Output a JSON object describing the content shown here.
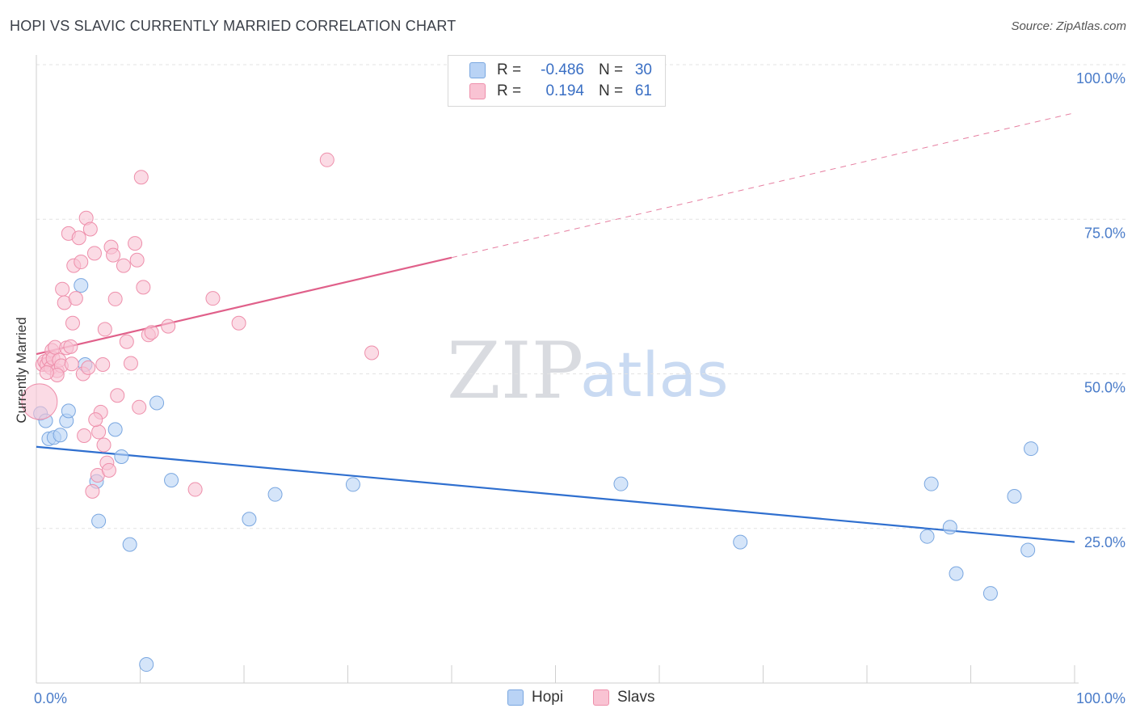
{
  "title": "HOPI VS SLAVIC CURRENTLY MARRIED CORRELATION CHART",
  "source": "Source: ZipAtlas.com",
  "watermark": {
    "zip": "ZIP",
    "atlas": "atlas"
  },
  "colors": {
    "hopi_fill": "#b9d3f5",
    "hopi_stroke": "#7aa7e0",
    "hopi_line": "#2f6fcf",
    "slavs_fill": "#f9c3d3",
    "slavs_stroke": "#ee8fab",
    "slavs_line": "#e0608a",
    "tick": "#4a7cc9"
  },
  "legend": {
    "rows": [
      {
        "r_label": "R =",
        "r_value": "-0.486",
        "n_label": "N =",
        "n_value": "30"
      },
      {
        "r_label": "R =",
        "r_value": "0.194",
        "n_label": "N =",
        "n_value": "61"
      }
    ]
  },
  "chart_data": {
    "type": "scatter",
    "title": "HOPI VS SLAVIC CURRENTLY MARRIED CORRELATION CHART",
    "xlabel": "",
    "ylabel": "Currently Married",
    "xlim": [
      0,
      100
    ],
    "ylim": [
      0,
      100
    ],
    "x_tick_labels": {
      "left": "0.0%",
      "right": "100.0%"
    },
    "y_ticks": [
      {
        "value": 100,
        "label": "100.0%"
      },
      {
        "value": 75,
        "label": "75.0%"
      },
      {
        "value": 50,
        "label": "50.0%"
      },
      {
        "value": 25,
        "label": "25.0%"
      }
    ],
    "legend_entries": [
      "Hopi",
      "Slavs"
    ],
    "series": [
      {
        "name": "Hopi",
        "r": -0.486,
        "n": 30,
        "trend": {
          "x0": 0,
          "y0": 38.2,
          "x1": 100,
          "y1": 22.8,
          "dashed_from": null
        },
        "points": [
          [
            0.4,
            43.6
          ],
          [
            0.9,
            42.4
          ],
          [
            1.2,
            39.5
          ],
          [
            1.7,
            39.7
          ],
          [
            2.3,
            40.1
          ],
          [
            2.9,
            42.4
          ],
          [
            3.1,
            44.0
          ],
          [
            4.3,
            64.3
          ],
          [
            4.7,
            51.5
          ],
          [
            5.8,
            32.6
          ],
          [
            6.0,
            26.2
          ],
          [
            7.6,
            41.0
          ],
          [
            8.2,
            36.6
          ],
          [
            9.0,
            22.4
          ],
          [
            10.6,
            3.0
          ],
          [
            11.6,
            45.3
          ],
          [
            13.0,
            32.8
          ],
          [
            20.5,
            26.5
          ],
          [
            23.0,
            30.5
          ],
          [
            30.5,
            32.1
          ],
          [
            56.3,
            32.2
          ],
          [
            67.8,
            22.8
          ],
          [
            85.8,
            23.7
          ],
          [
            86.2,
            32.2
          ],
          [
            88.0,
            25.2
          ],
          [
            88.6,
            17.7
          ],
          [
            91.9,
            14.5
          ],
          [
            94.2,
            30.2
          ],
          [
            95.5,
            21.5
          ],
          [
            95.8,
            37.9
          ]
        ]
      },
      {
        "name": "Slavs",
        "r": 0.194,
        "n": 61,
        "trend": {
          "x0": 0,
          "y0": 53.2,
          "x1": 100,
          "y1": 92.2,
          "dashed_from": 40
        },
        "points": [
          [
            0.3,
            45.5
          ],
          [
            0.6,
            51.5
          ],
          [
            0.8,
            52.0
          ],
          [
            1.0,
            51.5
          ],
          [
            1.2,
            52.3
          ],
          [
            1.4,
            51.0
          ],
          [
            1.5,
            53.8
          ],
          [
            1.6,
            52.5
          ],
          [
            1.8,
            54.3
          ],
          [
            2.0,
            50.5
          ],
          [
            2.2,
            52.2
          ],
          [
            2.4,
            51.3
          ],
          [
            2.5,
            63.7
          ],
          [
            2.7,
            61.5
          ],
          [
            2.9,
            54.2
          ],
          [
            3.1,
            72.7
          ],
          [
            3.3,
            54.4
          ],
          [
            3.5,
            58.2
          ],
          [
            3.6,
            67.5
          ],
          [
            3.8,
            62.2
          ],
          [
            4.1,
            72.0
          ],
          [
            4.3,
            68.1
          ],
          [
            4.5,
            50.0
          ],
          [
            4.8,
            75.2
          ],
          [
            5.0,
            51.0
          ],
          [
            5.2,
            73.4
          ],
          [
            5.4,
            31.0
          ],
          [
            5.6,
            69.5
          ],
          [
            5.9,
            33.6
          ],
          [
            6.0,
            40.6
          ],
          [
            6.2,
            43.8
          ],
          [
            6.4,
            51.5
          ],
          [
            6.6,
            57.2
          ],
          [
            6.8,
            35.6
          ],
          [
            7.0,
            34.4
          ],
          [
            7.2,
            70.5
          ],
          [
            7.4,
            69.2
          ],
          [
            7.6,
            62.1
          ],
          [
            7.8,
            46.5
          ],
          [
            8.4,
            67.5
          ],
          [
            8.7,
            55.2
          ],
          [
            9.1,
            51.7
          ],
          [
            9.5,
            71.1
          ],
          [
            9.7,
            68.4
          ],
          [
            9.9,
            44.6
          ],
          [
            10.1,
            81.8
          ],
          [
            10.3,
            64.0
          ],
          [
            10.8,
            56.3
          ],
          [
            11.1,
            56.7
          ],
          [
            12.7,
            57.7
          ],
          [
            15.3,
            31.3
          ],
          [
            17.0,
            62.2
          ],
          [
            19.5,
            58.2
          ],
          [
            28.0,
            84.6
          ],
          [
            32.3,
            53.4
          ],
          [
            6.5,
            38.5
          ],
          [
            4.6,
            40.0
          ],
          [
            2.0,
            49.8
          ],
          [
            1.0,
            50.2
          ],
          [
            3.4,
            51.6
          ],
          [
            5.7,
            42.6
          ]
        ]
      }
    ]
  }
}
